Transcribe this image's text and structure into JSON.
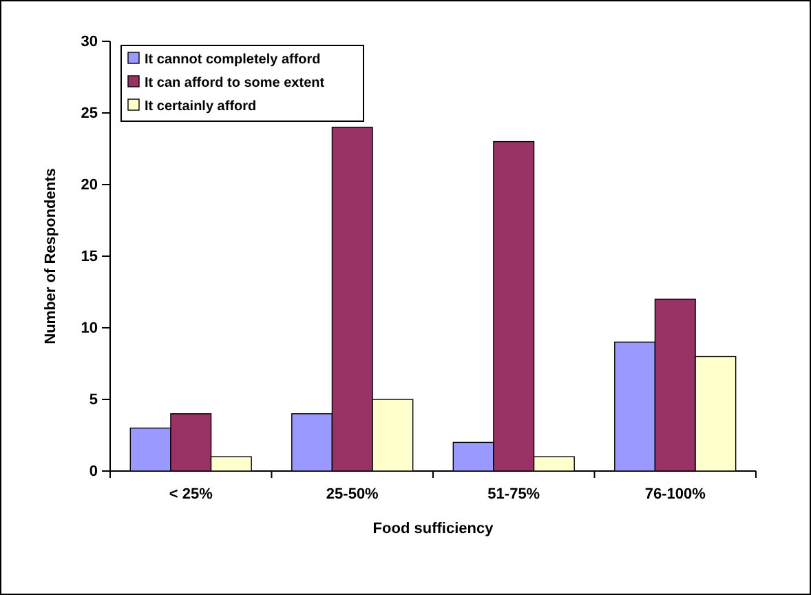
{
  "chart_data": {
    "type": "bar",
    "xlabel": "Food sufficiency",
    "ylabel": "Number of Respondents",
    "categories": [
      "< 25%",
      "25-50%",
      "51-75%",
      "76-100%"
    ],
    "series": [
      {
        "name": "It cannot completely afford",
        "color": "#9999ff",
        "values": [
          3,
          4,
          2,
          9
        ]
      },
      {
        "name": "It can afford to some extent",
        "color": "#993366",
        "values": [
          4,
          24,
          23,
          12
        ]
      },
      {
        "name": "It certainly afford",
        "color": "#ffffcc",
        "values": [
          1,
          5,
          1,
          8
        ]
      }
    ],
    "ylim": [
      0,
      30
    ],
    "yticks": [
      0,
      5,
      10,
      15,
      20,
      25,
      30
    ],
    "grid": false,
    "legend": "top left"
  }
}
